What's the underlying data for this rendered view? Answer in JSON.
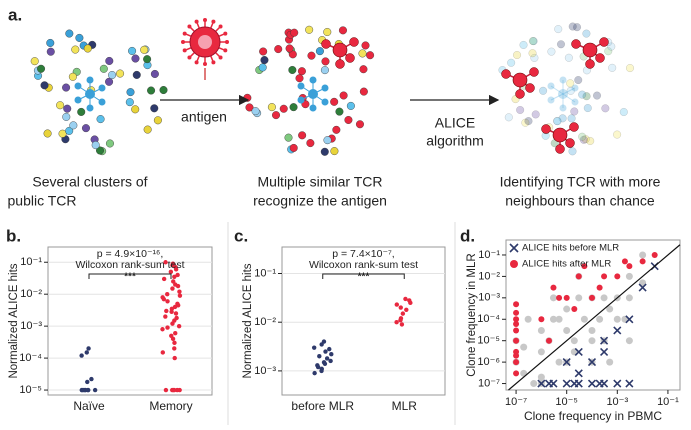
{
  "diagram": {
    "label": "a.",
    "arrow_1_label": "antigen",
    "arrow_2_label": [
      "ALICE",
      "algorithm"
    ],
    "captions": [
      {
        "lines": [
          "Several clusters of",
          "public TCR"
        ]
      },
      {
        "lines": [
          "Multiple similar TCR",
          "recognize the antigen"
        ]
      },
      {
        "lines": [
          "Identifying TCR with more",
          "neighbours than chance"
        ]
      }
    ]
  },
  "chart_data": [
    {
      "type": "strip",
      "panel": "b.",
      "ylabel": "Normalized ALICE hits",
      "ylog": true,
      "grid": true,
      "ylim": [
        7e-06,
        0.3
      ],
      "yticks": [
        {
          "value": 1e-05,
          "label": "10⁻⁵"
        },
        {
          "value": 0.0001,
          "label": "10⁻⁴"
        },
        {
          "value": 0.001,
          "label": "10⁻³"
        },
        {
          "value": 0.01,
          "label": "10⁻²"
        },
        {
          "value": 0.1,
          "label": "10⁻¹"
        }
      ],
      "annotations": [
        "p = 4.9×10⁻¹⁶,",
        "Wilcoxon rank-sum test",
        "***"
      ],
      "categories": [
        "Naïve",
        "Memory"
      ],
      "series": [
        {
          "color": "#2e3a6b",
          "values": [
            0.0002,
            0.00015,
            0.00012,
            2.2e-05,
            1.8e-05,
            1e-05,
            1e-05,
            1e-05,
            1e-05,
            1e-05,
            1e-05,
            1e-05,
            1e-05
          ]
        },
        {
          "color": "#e8283f",
          "values": [
            0.1,
            0.09,
            0.08,
            0.07,
            0.06,
            0.05,
            0.04,
            0.035,
            0.03,
            0.025,
            0.02,
            0.018,
            0.015,
            0.012,
            0.01,
            0.009,
            0.008,
            0.007,
            0.006,
            0.005,
            0.0045,
            0.004,
            0.0035,
            0.003,
            0.0028,
            0.0025,
            0.002,
            0.0018,
            0.0015,
            0.0012,
            0.001,
            0.0009,
            0.0008,
            0.0006,
            0.0005,
            0.0004,
            0.0003,
            0.0002,
            0.00015,
            0.0001,
            1e-05,
            1e-05,
            1e-05,
            1e-05,
            1e-05,
            1e-05
          ]
        }
      ]
    },
    {
      "type": "strip",
      "panel": "c.",
      "ylabel": "Normalized ALICE hits",
      "ylog": true,
      "grid": true,
      "ylim": [
        0.00032,
        0.35
      ],
      "yticks": [
        {
          "value": 0.001,
          "label": "10⁻³"
        },
        {
          "value": 0.01,
          "label": "10⁻²"
        },
        {
          "value": 0.1,
          "label": "10⁻¹"
        }
      ],
      "annotations": [
        "p = 7.4×10⁻⁷,",
        "Wilcoxon rank-sum test",
        "***"
      ],
      "categories": [
        "before MLR",
        "MLR"
      ],
      "series": [
        {
          "color": "#2e3a6b",
          "values": [
            0.004,
            0.0035,
            0.003,
            0.0028,
            0.0025,
            0.0022,
            0.002,
            0.0018,
            0.0016,
            0.0015,
            0.0014,
            0.0013,
            0.0012,
            0.0011,
            0.001,
            0.0009
          ]
        },
        {
          "color": "#e8283f",
          "values": [
            0.03,
            0.028,
            0.025,
            0.023,
            0.02,
            0.018,
            0.015,
            0.012,
            0.011,
            0.01,
            0.009
          ]
        }
      ]
    },
    {
      "type": "scatter",
      "panel": "d.",
      "xlabel": "Clone frequency in PBMC",
      "ylabel": "Clone frequency in MLR",
      "xlog": true,
      "ylog": true,
      "grid": false,
      "legend": "top-left",
      "xlim": [
        4e-08,
        0.3
      ],
      "ylim": [
        5e-08,
        0.5
      ],
      "xticks": [
        {
          "value": 1e-07,
          "label": "10⁻⁷"
        },
        {
          "value": 1e-05,
          "label": "10⁻⁵"
        },
        {
          "value": 0.001,
          "label": "10⁻³"
        },
        {
          "value": 0.1,
          "label": "10⁻¹"
        }
      ],
      "yticks": [
        {
          "value": 1e-07,
          "label": "10⁻⁷"
        },
        {
          "value": 1e-06,
          "label": "10⁻⁶"
        },
        {
          "value": 1e-05,
          "label": "10⁻⁵"
        },
        {
          "value": 0.0001,
          "label": "10⁻⁴"
        },
        {
          "value": 0.001,
          "label": "10⁻³"
        },
        {
          "value": 0.01,
          "label": "10⁻²"
        },
        {
          "value": 0.1,
          "label": "10⁻¹"
        }
      ],
      "series": [
        {
          "color": "#c8c8c8",
          "marker": "circle",
          "x": [
            1e-07,
            2e-07,
            5e-07,
            1e-06,
            2e-06,
            5e-06,
            1e-05,
            2e-05,
            5e-05,
            0.0001,
            0.0002,
            0.0005,
            0.001,
            0.003,
            0.01,
            1e-07,
            3e-07,
            1e-06,
            3e-06,
            1e-05,
            3e-05,
            0.0001,
            0.0003,
            0.001,
            0.003,
            2e-07,
            1e-06,
            5e-06,
            2e-05,
            0.0001,
            0.0005,
            0.002,
            0.01,
            3e-06,
            3e-05,
            0.0003,
            0.003,
            1e-06,
            1e-05,
            0.0001
          ],
          "values": [
            1e-06,
            5e-06,
            1e-07,
            3e-06,
            1e-05,
            1e-06,
            3e-05,
            1e-05,
            0.0001,
            3e-05,
            0.0001,
            0.0003,
            0.001,
            0.001,
            0.005,
            1e-05,
            0.0001,
            1e-07,
            0.0001,
            1e-06,
            0.001,
            1e-05,
            1e-05,
            0.0001,
            0.01,
            3e-07,
            3e-05,
            0.0001,
            3e-06,
            0.001,
            1e-06,
            0.0001,
            0.1,
            0.001,
            0.01,
            0.001,
            1e-05,
            2e-07,
            0.0003,
            1e-06
          ]
        },
        {
          "name": "ALICE hits after MLR",
          "color": "#e8283f",
          "marker": "circle",
          "x": [
            1e-07,
            1e-07,
            1e-07,
            1e-07,
            1e-07,
            1e-07,
            1e-07,
            1e-07,
            1e-07,
            1e-07,
            1e-06,
            3e-06,
            1e-05,
            3e-05,
            0.0001,
            0.0003,
            0.001,
            0.003,
            0.01,
            0.03,
            2e-06,
            2e-05,
            0.0002,
            0.002,
            5e-06,
            5e-05
          ],
          "values": [
            3e-07,
            1e-06,
            3e-06,
            1e-05,
            3e-05,
            0.0001,
            0.0002,
            0.0005,
            2e-06,
            6e-05,
            0.0001,
            0.003,
            0.001,
            0.01,
            0.001,
            0.01,
            0.01,
            0.03,
            0.05,
            0.1,
            1e-05,
            0.0003,
            0.003,
            0.05,
            0.001,
            0.03
          ]
        },
        {
          "name": "ALICE hits before MLR",
          "color": "#2e3a6b",
          "marker": "x",
          "x": [
            1e-06,
            3e-06,
            1e-05,
            3e-05,
            0.0001,
            0.0003,
            0.001,
            0.003,
            2e-06,
            2e-05,
            0.0002,
            1e-05,
            3e-05,
            0.0001,
            0.0003,
            0.001,
            0.003,
            0.01,
            0.03,
            3e-05,
            0.0003
          ],
          "values": [
            1e-07,
            1e-07,
            1e-07,
            1e-07,
            1e-07,
            1e-07,
            1e-07,
            1e-07,
            1e-07,
            1e-07,
            1e-07,
            1e-06,
            3e-06,
            1e-06,
            1e-05,
            3e-05,
            0.0001,
            0.003,
            0.03,
            3e-07,
            3e-06
          ]
        }
      ]
    }
  ]
}
